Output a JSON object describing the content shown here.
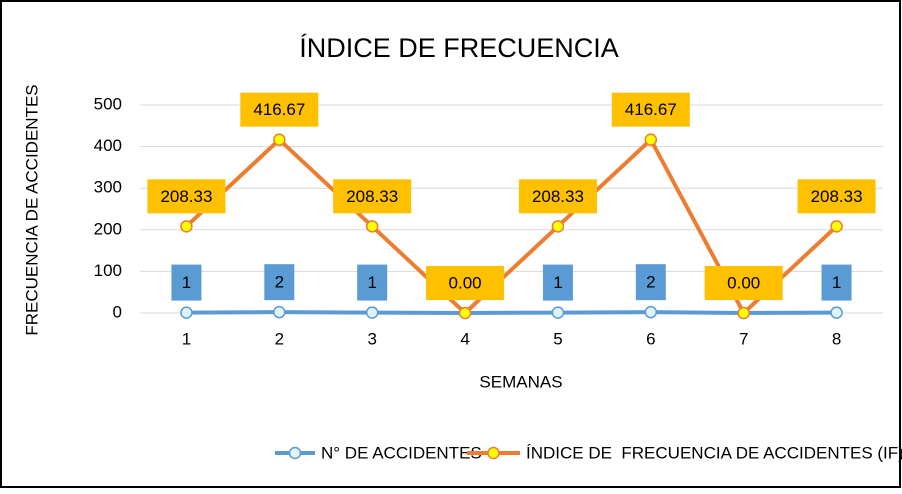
{
  "chart_data": {
    "type": "line",
    "title": "ÍNDICE DE FRECUENCIA",
    "x_label": "SEMANAS",
    "y_label": "FRECUENCIA DE ACCIDENTES",
    "categories": [
      "1",
      "2",
      "3",
      "4",
      "5",
      "6",
      "7",
      "8"
    ],
    "series": [
      {
        "name": "N° DE ACCIDENTES",
        "color": "#5b9bd5",
        "marker_fill": "#dff3f8",
        "label_box": "#5b9bd5",
        "values": [
          1,
          2,
          1,
          0,
          1,
          2,
          0,
          1
        ],
        "value_labels": [
          "1",
          "2",
          "1",
          null,
          "1",
          "2",
          null,
          "1"
        ]
      },
      {
        "name": "ÍNDICE DE  FRECUENCIA DE ACCIDENTES (IF)",
        "color": "#ed7d31",
        "marker_fill": "#ffff00",
        "label_box": "#ffc000",
        "values": [
          208.33,
          416.67,
          208.33,
          0,
          208.33,
          416.67,
          0,
          208.33
        ],
        "value_labels": [
          "208.33",
          "416.67",
          "208.33",
          "0.00",
          "208.33",
          "416.67",
          "0.00",
          "208.33"
        ]
      }
    ],
    "ylim": [
      0,
      500
    ],
    "yticks": [
      0,
      100,
      200,
      300,
      400,
      500
    ],
    "grid": true,
    "legend": "bottom"
  }
}
